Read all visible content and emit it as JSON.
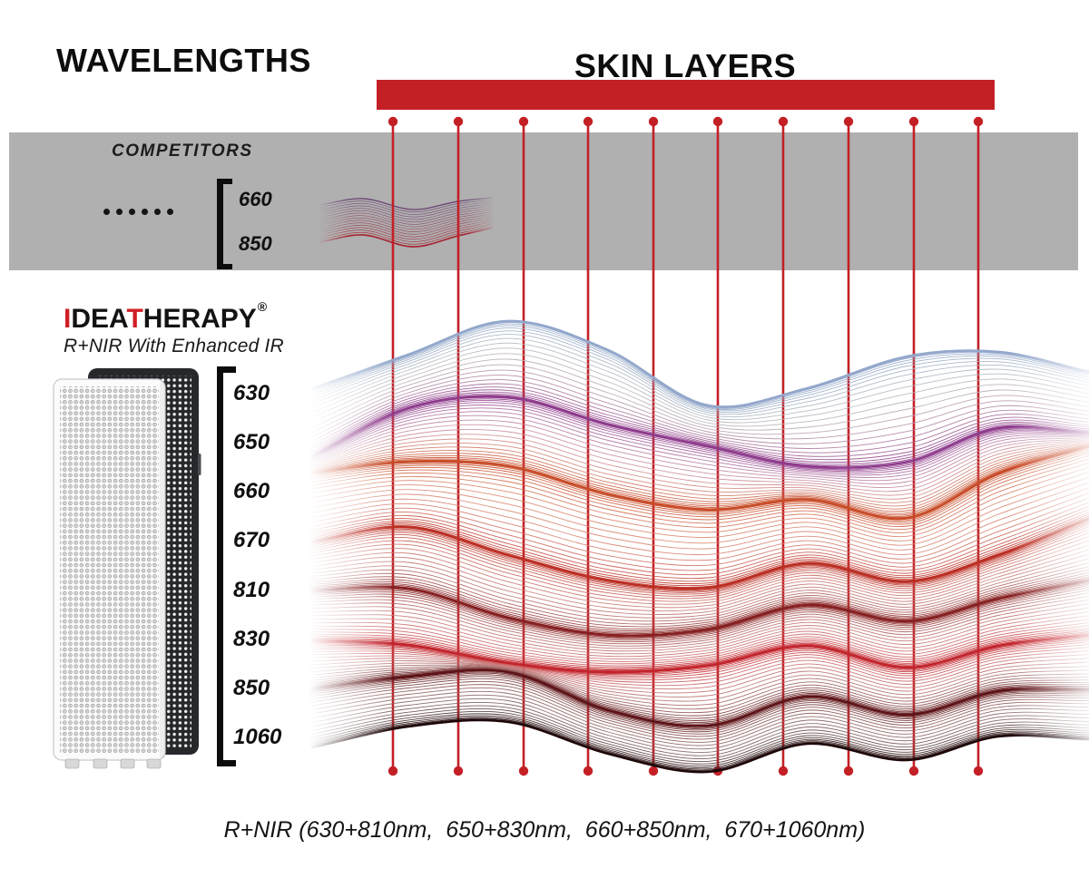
{
  "header": {
    "left_title": "WAVELENGTHS",
    "right_title": "SKIN LAYERS"
  },
  "competitors": {
    "label": "COMPETITORS",
    "wavelengths": [
      "660",
      "850"
    ],
    "dot_count": 6
  },
  "brand": {
    "logo_part1_red": "I",
    "logo_part2": "DEA",
    "logo_part3_red": "T",
    "logo_part4": "HERAPY",
    "registered": "®",
    "tagline": "R+NIR With Enhanced IR"
  },
  "device": {
    "wavelengths": [
      "630",
      "650",
      "660",
      "670",
      "810",
      "830",
      "850",
      "1060"
    ]
  },
  "caption": "R+NIR (630+810nm,  650+830nm,  660+850nm,  670+1060nm)",
  "skin_layers": {
    "penetration_line_count": 10
  },
  "palette": {
    "accent_red": "#c32026",
    "band_gray": "#b0b0b0",
    "logo_red": "#d01f26",
    "wave_accents": [
      "#92a7cb",
      "#8e3a8c",
      "#c84b27",
      "#bb2d22",
      "#851e1f",
      "#c2232b",
      "#5c1216",
      "#1e0709"
    ],
    "wave_mids": [
      "#eaeec6",
      "#f2e7e3",
      "#f4ded2",
      "#efd8d0",
      "#f0dad3",
      "#eed6cf",
      "#e2c8c2"
    ],
    "competitor_wave_top": "#6f4a78",
    "competitor_wave_mid": "#9d7386",
    "competitor_wave_bottom": "#a52834"
  }
}
